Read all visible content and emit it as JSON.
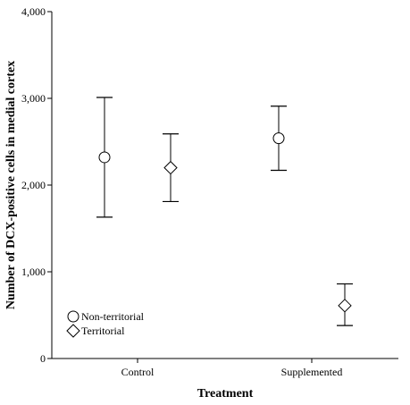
{
  "chart_data": {
    "type": "scatter",
    "title": "",
    "xlabel": "Treatment",
    "ylabel": "Number of DCX-positive cells in medial cortex",
    "categories": [
      "Control",
      "Supplemented"
    ],
    "ylim": [
      0,
      4000
    ],
    "yticks": [
      0,
      1000,
      2000,
      3000,
      4000
    ],
    "ytick_labels": [
      "0",
      "1,000",
      "2,000",
      "3,000",
      "4,000"
    ],
    "grid": false,
    "legend_position": "bottom-left",
    "series": [
      {
        "name": "Non-territorial",
        "marker": "circle",
        "points": [
          {
            "category": "Control",
            "mean": 2320,
            "lower": 1630,
            "upper": 3010
          },
          {
            "category": "Supplemented",
            "mean": 2540,
            "lower": 2170,
            "upper": 2910
          }
        ]
      },
      {
        "name": "Territorial",
        "marker": "diamond",
        "points": [
          {
            "category": "Control",
            "mean": 2200,
            "lower": 1810,
            "upper": 2590
          },
          {
            "category": "Supplemented",
            "mean": 610,
            "lower": 380,
            "upper": 860
          }
        ]
      }
    ]
  }
}
